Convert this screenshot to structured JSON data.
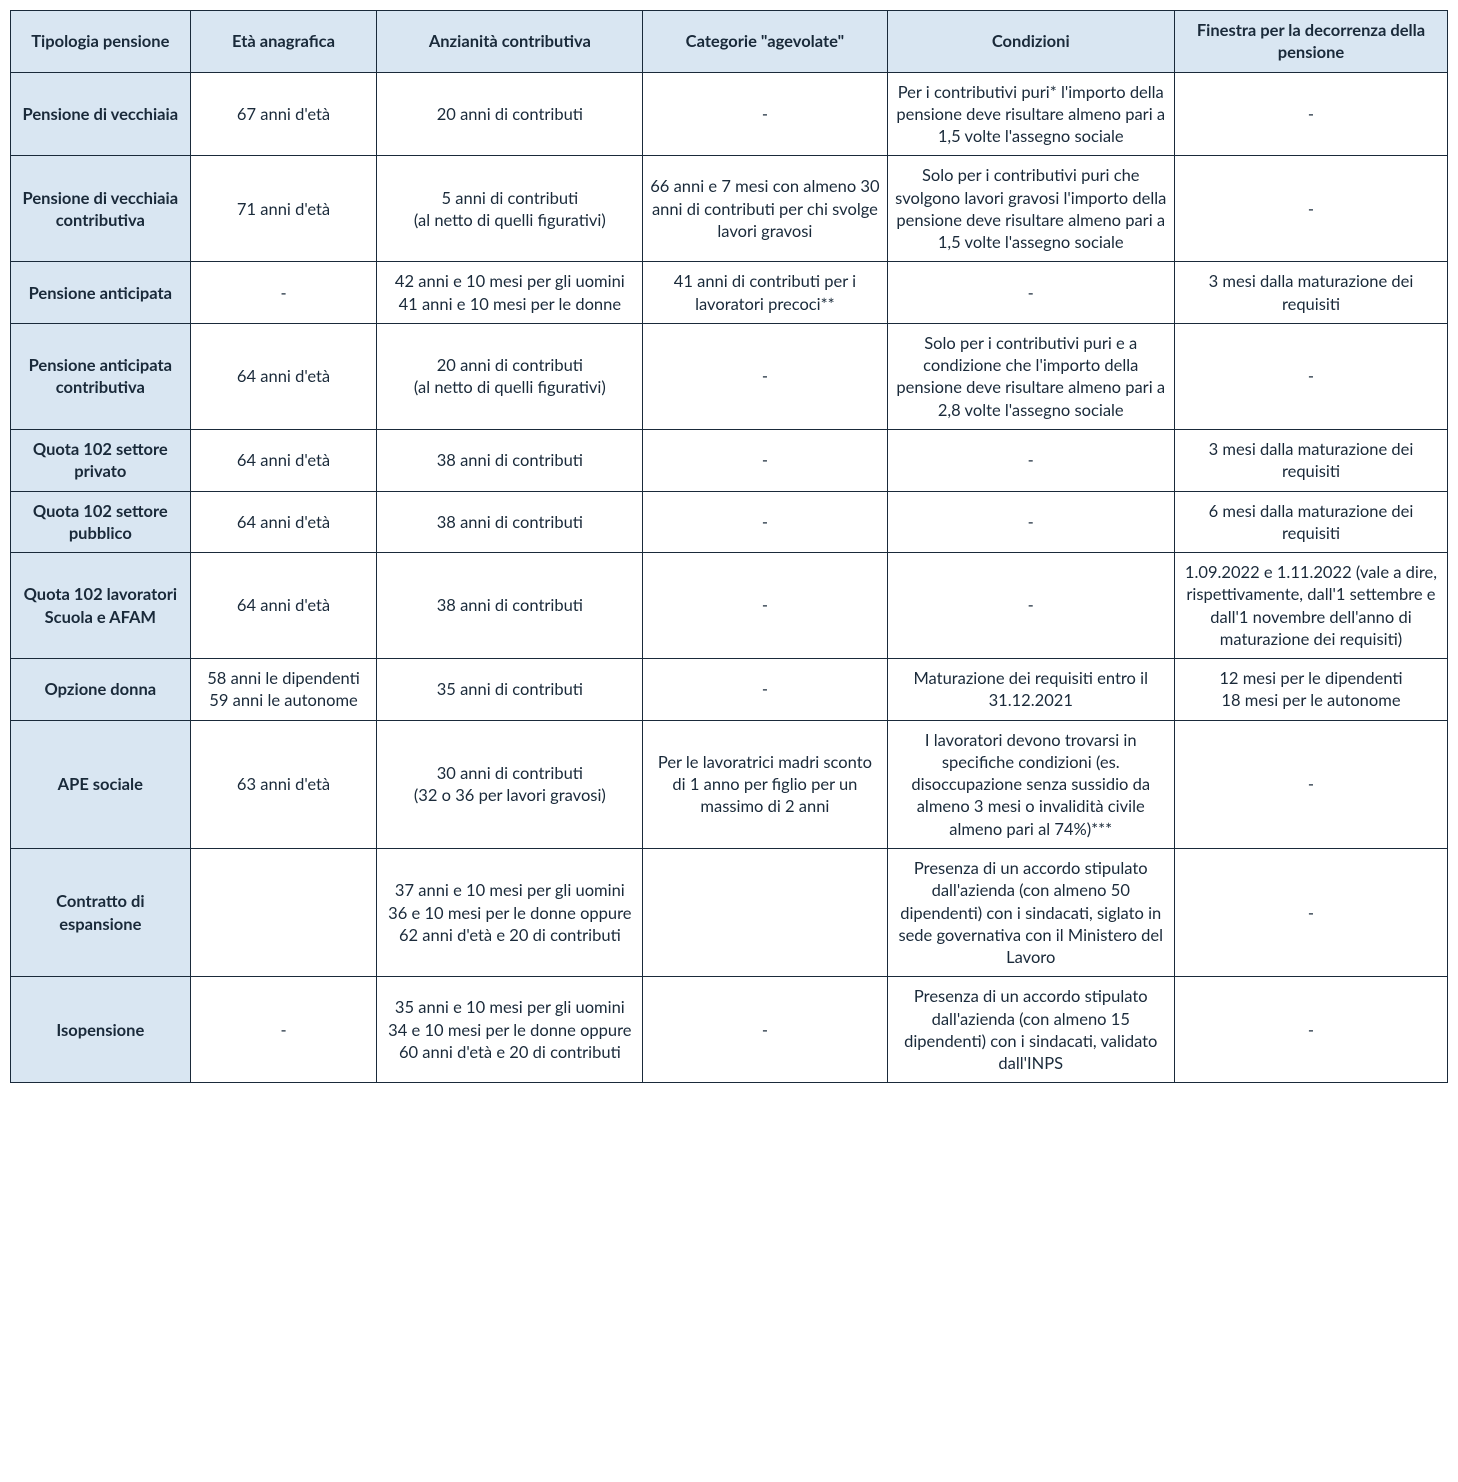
{
  "table": {
    "background_color": "#ffffff",
    "border_color": "#1a2a3a",
    "header_bg": "#d9e6f2",
    "rowhead_bg": "#d9e6f2",
    "text_color": "#1a2a3a",
    "font_family": "Lato, Segoe UI, Arial, sans-serif",
    "font_size_pt": 12,
    "header_font_weight": 700,
    "columns": [
      {
        "label": "Tipologia pensione",
        "width_pct": 12.5
      },
      {
        "label": "Età anagrafica",
        "width_pct": 13
      },
      {
        "label": "Anzianità contributiva",
        "width_pct": 18.5
      },
      {
        "label": "Categorie \"agevolate\"",
        "width_pct": 17
      },
      {
        "label": "Condizioni",
        "width_pct": 20
      },
      {
        "label": "Finestra per la decorrenza della pensione",
        "width_pct": 19
      }
    ],
    "rows": [
      {
        "tipologia": "Pensione di vecchiaia",
        "eta": "67 anni d'età",
        "anzianita": "20 anni di contributi",
        "categorie": "-",
        "condizioni": "Per i contributivi puri* l'importo della pensione deve risultare almeno pari a 1,5 volte l'assegno sociale",
        "finestra": "-"
      },
      {
        "tipologia": "Pensione di vecchiaia contributiva",
        "eta": "71 anni d'età",
        "anzianita": "5 anni di contributi\n(al netto di quelli figurativi)",
        "categorie": "66 anni e 7 mesi con almeno 30 anni di contributi per chi svolge lavori gravosi",
        "condizioni": "Solo per i contributivi puri che svolgono lavori gravosi l'importo della pensione deve risultare almeno pari a 1,5 volte l'assegno sociale",
        "finestra": "-"
      },
      {
        "tipologia": "Pensione anticipata",
        "eta": "-",
        "anzianita": "42 anni e 10 mesi per gli uomini\n41 anni e 10 mesi per le donne",
        "categorie": "41 anni di contributi per i lavoratori precoci**",
        "condizioni": "-",
        "finestra": "3 mesi dalla maturazione dei requisiti"
      },
      {
        "tipologia": "Pensione anticipata contributiva",
        "eta": "64 anni d'età",
        "anzianita": "20 anni di contributi\n(al netto di quelli figurativi)",
        "categorie": "-",
        "condizioni": "Solo per i contributivi puri e a condizione che l'importo della pensione deve risultare almeno pari a 2,8 volte l'assegno sociale",
        "finestra": "-"
      },
      {
        "tipologia": "Quota 102 settore privato",
        "eta": "64 anni d'età",
        "anzianita": "38 anni di contributi",
        "categorie": "-",
        "condizioni": "-",
        "finestra": "3 mesi dalla maturazione dei requisiti"
      },
      {
        "tipologia": "Quota 102 settore pubblico",
        "eta": "64 anni d'età",
        "anzianita": "38 anni di contributi",
        "categorie": "-",
        "condizioni": "-",
        "finestra": "6 mesi dalla maturazione dei requisiti"
      },
      {
        "tipologia": "Quota 102 lavoratori Scuola e AFAM",
        "eta": "64 anni d'età",
        "anzianita": "38 anni di contributi",
        "categorie": "-",
        "condizioni": "-",
        "finestra": "1.09.2022 e 1.11.2022 (vale a dire, rispettivamente, dall'1 settembre e dall'1 novembre dell'anno di maturazione dei  requisiti)"
      },
      {
        "tipologia": "Opzione donna",
        "eta": "58 anni le dipendenti\n59 anni le autonome",
        "anzianita": "35 anni di contributi",
        "categorie": "-",
        "condizioni": "Maturazione dei requisiti entro il 31.12.2021",
        "finestra": "12 mesi per le dipendenti\n18 mesi per le autonome"
      },
      {
        "tipologia": "APE sociale",
        "eta": "63 anni d'età",
        "anzianita": "30 anni di contributi\n(32 o 36 per lavori gravosi)",
        "categorie": "Per le lavoratrici madri sconto di 1 anno per figlio per un massimo di 2 anni",
        "condizioni": "I lavoratori devono trovarsi in specifiche condizioni (es. disoccupazione senza sussidio da almeno 3 mesi o invalidità civile almeno pari al 74%)***",
        "finestra": "-"
      },
      {
        "tipologia": "Contratto di espansione",
        "eta": "",
        "anzianita": "37 anni e 10 mesi per gli uomini\n36  e 10 mesi per le donne oppure 62 anni d'età e 20 di contributi",
        "categorie": "",
        "condizioni": "Presenza di un accordo stipulato dall'azienda (con almeno 50 dipendenti) con i sindacati, siglato in sede governativa con il Ministero del Lavoro",
        "finestra": "-"
      },
      {
        "tipologia": "Isopensione",
        "eta": "-",
        "anzianita": "35 anni e 10 mesi per gli uomini\n34 e 10 mesi per le donne oppure 60 anni d'età e 20 di contributi",
        "categorie": "-",
        "condizioni": "Presenza di un accordo stipulato dall'azienda (con almeno 15 dipendenti) con i sindacati, validato dall'INPS",
        "finestra": "-"
      }
    ]
  }
}
